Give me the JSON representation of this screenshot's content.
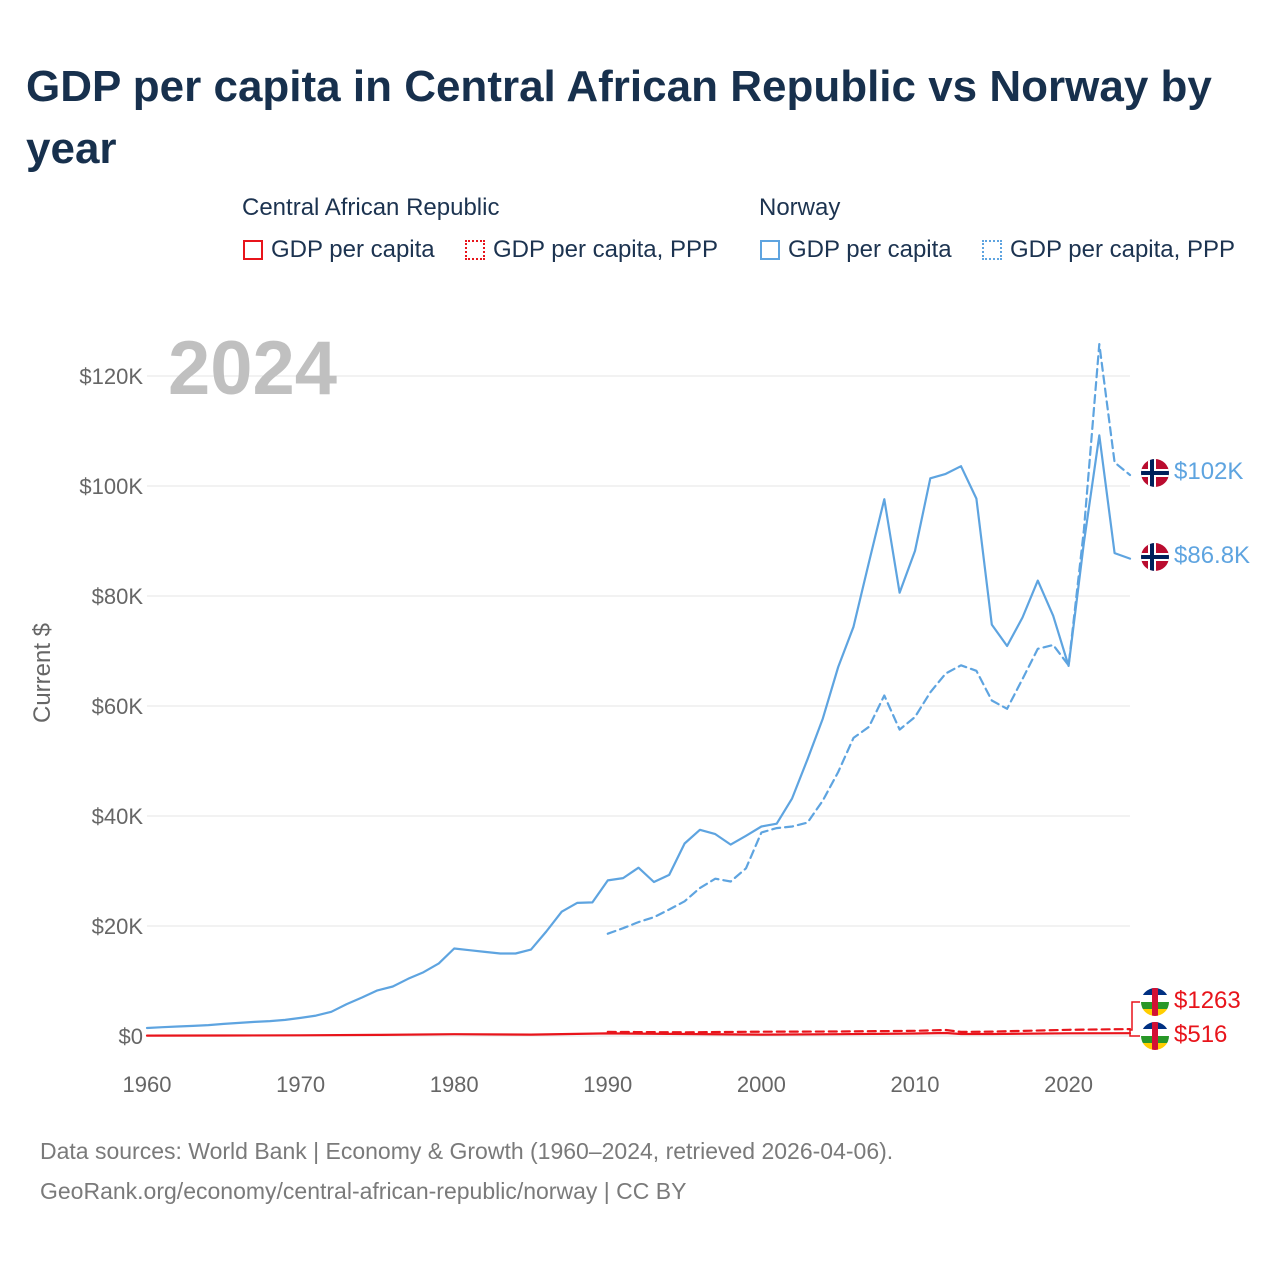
{
  "header": {
    "title": "GDP per capita in Central African Republic vs Norway by year"
  },
  "legend": {
    "groups": [
      {
        "label": "Central African Republic",
        "items": [
          {
            "label": "GDP per capita"
          },
          {
            "label": "GDP per capita, PPP"
          }
        ]
      },
      {
        "label": "Norway",
        "items": [
          {
            "label": "GDP per capita"
          },
          {
            "label": "GDP per capita, PPP"
          }
        ]
      }
    ]
  },
  "footer": {
    "line1": "Data sources: World Bank | Economy & Growth (1960–2024, retrieved 2026-04-06).",
    "line2": "GeoRank.org/economy/central-african-republic/norway | CC BY"
  },
  "colors": {
    "car": "#e8141b",
    "norway": "#5ea4e0",
    "title": "#17304d",
    "axis_text": "#666666",
    "grid": "#e6e6e6",
    "year_watermark": "#c0c0c0"
  },
  "chart_data": {
    "type": "line",
    "year_label": "2024",
    "ylabel": "Current $",
    "xlim": [
      1960,
      2024
    ],
    "ylim": [
      0,
      120000
    ],
    "xticks": [
      1960,
      1970,
      1980,
      1990,
      2000,
      2010,
      2020
    ],
    "xtick_labels": [
      "1960",
      "1970",
      "1980",
      "1990",
      "2000",
      "2010",
      "2020"
    ],
    "yticks": [
      0,
      20000,
      40000,
      60000,
      80000,
      100000,
      120000
    ],
    "ytick_labels": [
      "$0",
      "$20K",
      "$40K",
      "$60K",
      "$80K",
      "$100K",
      "$120K"
    ],
    "grid": true,
    "series": [
      {
        "id": "nor_gdp",
        "name": "Norway GDP per capita",
        "country": "Norway",
        "style": "solid",
        "color": "#5ea4e0",
        "end_label": "$86.8K",
        "points": [
          [
            1960,
            1450
          ],
          [
            1961,
            1600
          ],
          [
            1962,
            1720
          ],
          [
            1963,
            1830
          ],
          [
            1964,
            1980
          ],
          [
            1965,
            2200
          ],
          [
            1966,
            2380
          ],
          [
            1967,
            2560
          ],
          [
            1968,
            2700
          ],
          [
            1969,
            2920
          ],
          [
            1970,
            3300
          ],
          [
            1971,
            3700
          ],
          [
            1972,
            4400
          ],
          [
            1973,
            5800
          ],
          [
            1974,
            7000
          ],
          [
            1975,
            8300
          ],
          [
            1976,
            9000
          ],
          [
            1977,
            10400
          ],
          [
            1978,
            11600
          ],
          [
            1979,
            13200
          ],
          [
            1980,
            15900
          ],
          [
            1981,
            15600
          ],
          [
            1982,
            15300
          ],
          [
            1983,
            15000
          ],
          [
            1984,
            15000
          ],
          [
            1985,
            15700
          ],
          [
            1986,
            19000
          ],
          [
            1987,
            22600
          ],
          [
            1988,
            24200
          ],
          [
            1989,
            24300
          ],
          [
            1990,
            28300
          ],
          [
            1991,
            28700
          ],
          [
            1992,
            30600
          ],
          [
            1993,
            28000
          ],
          [
            1994,
            29300
          ],
          [
            1995,
            35000
          ],
          [
            1996,
            37500
          ],
          [
            1997,
            36700
          ],
          [
            1998,
            34800
          ],
          [
            1999,
            36400
          ],
          [
            2000,
            38100
          ],
          [
            2001,
            38600
          ],
          [
            2002,
            43200
          ],
          [
            2003,
            50300
          ],
          [
            2004,
            57700
          ],
          [
            2005,
            67100
          ],
          [
            2006,
            74400
          ],
          [
            2007,
            86100
          ],
          [
            2008,
            97600
          ],
          [
            2009,
            80600
          ],
          [
            2010,
            88200
          ],
          [
            2011,
            101400
          ],
          [
            2012,
            102200
          ],
          [
            2013,
            103600
          ],
          [
            2014,
            97700
          ],
          [
            2015,
            74800
          ],
          [
            2016,
            70900
          ],
          [
            2017,
            76100
          ],
          [
            2018,
            82800
          ],
          [
            2019,
            76400
          ],
          [
            2020,
            67300
          ],
          [
            2021,
            89700
          ],
          [
            2022,
            109200
          ],
          [
            2023,
            87800
          ],
          [
            2024,
            86800
          ]
        ]
      },
      {
        "id": "nor_ppp",
        "name": "Norway GDP per capita, PPP",
        "country": "Norway",
        "style": "dashed",
        "color": "#5ea4e0",
        "end_label": "$102K",
        "points": [
          [
            1990,
            18600
          ],
          [
            1991,
            19600
          ],
          [
            1992,
            20700
          ],
          [
            1993,
            21600
          ],
          [
            1994,
            23000
          ],
          [
            1995,
            24500
          ],
          [
            1996,
            26900
          ],
          [
            1997,
            28600
          ],
          [
            1998,
            28100
          ],
          [
            1999,
            30500
          ],
          [
            2000,
            37000
          ],
          [
            2001,
            37800
          ],
          [
            2002,
            38100
          ],
          [
            2003,
            38800
          ],
          [
            2004,
            42800
          ],
          [
            2005,
            48000
          ],
          [
            2006,
            54200
          ],
          [
            2007,
            56200
          ],
          [
            2008,
            61900
          ],
          [
            2009,
            55700
          ],
          [
            2010,
            58000
          ],
          [
            2011,
            62500
          ],
          [
            2012,
            65900
          ],
          [
            2013,
            67400
          ],
          [
            2014,
            66400
          ],
          [
            2015,
            61000
          ],
          [
            2016,
            59500
          ],
          [
            2017,
            64900
          ],
          [
            2018,
            70400
          ],
          [
            2019,
            71100
          ],
          [
            2020,
            67400
          ],
          [
            2021,
            92000
          ],
          [
            2022,
            125800
          ],
          [
            2023,
            104300
          ],
          [
            2024,
            102000
          ]
        ]
      },
      {
        "id": "car_gdp",
        "name": "Central African Republic GDP per capita",
        "country": "Central African Republic",
        "style": "solid",
        "color": "#e8141b",
        "end_label": "$516",
        "points": [
          [
            1960,
            80
          ],
          [
            1965,
            100
          ],
          [
            1970,
            120
          ],
          [
            1975,
            200
          ],
          [
            1980,
            330
          ],
          [
            1985,
            260
          ],
          [
            1990,
            470
          ],
          [
            1995,
            370
          ],
          [
            2000,
            250
          ],
          [
            2005,
            320
          ],
          [
            2010,
            460
          ],
          [
            2012,
            540
          ],
          [
            2013,
            360
          ],
          [
            2015,
            370
          ],
          [
            2020,
            500
          ],
          [
            2024,
            516
          ]
        ]
      },
      {
        "id": "car_ppp",
        "name": "Central African Republic GDP per capita, PPP",
        "country": "Central African Republic",
        "style": "dashed",
        "color": "#e8141b",
        "end_label": "$1263",
        "points": [
          [
            1990,
            740
          ],
          [
            1995,
            680
          ],
          [
            2000,
            780
          ],
          [
            2005,
            820
          ],
          [
            2010,
            950
          ],
          [
            2012,
            1100
          ],
          [
            2013,
            740
          ],
          [
            2015,
            800
          ],
          [
            2020,
            1120
          ],
          [
            2024,
            1263
          ]
        ]
      }
    ]
  }
}
